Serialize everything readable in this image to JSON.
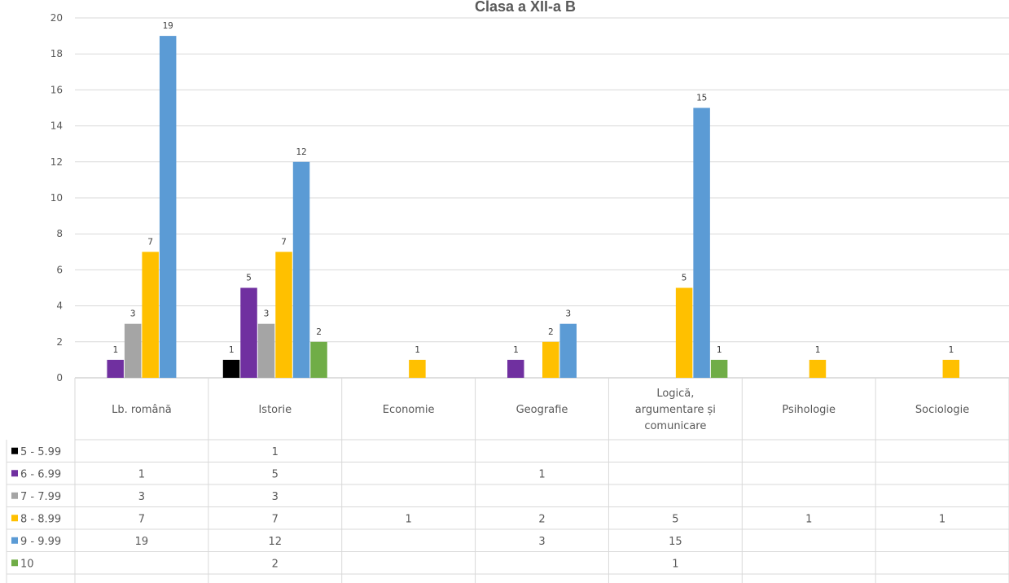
{
  "chart_data": {
    "type": "bar",
    "title": "Clasa a XII-a B",
    "categories": [
      [
        "Lb. română"
      ],
      [
        "Istorie"
      ],
      [
        "Economie"
      ],
      [
        "Geografie"
      ],
      [
        "Logică,",
        "argumentare și",
        "comunicare"
      ],
      [
        "Psihologie"
      ],
      [
        "Sociologie"
      ]
    ],
    "series": [
      {
        "name": "5 - 5.99",
        "color": "#000000",
        "values": [
          null,
          1,
          null,
          null,
          null,
          null,
          null
        ]
      },
      {
        "name": "6 - 6.99",
        "color": "#7030A0",
        "values": [
          1,
          5,
          null,
          1,
          null,
          null,
          null
        ]
      },
      {
        "name": "7 - 7.99",
        "color": "#A5A5A5",
        "values": [
          3,
          3,
          null,
          null,
          null,
          null,
          null
        ]
      },
      {
        "name": "8 - 8.99",
        "color": "#FFC000",
        "values": [
          7,
          7,
          1,
          2,
          5,
          1,
          1
        ]
      },
      {
        "name": "9 - 9.99",
        "color": "#5B9BD5",
        "values": [
          19,
          12,
          null,
          3,
          15,
          null,
          null
        ]
      },
      {
        "name": "10",
        "color": "#70AD47",
        "values": [
          null,
          2,
          null,
          null,
          1,
          null,
          null
        ]
      }
    ],
    "ylim": [
      0,
      20
    ],
    "yticks": [
      0,
      2,
      4,
      6,
      8,
      10,
      12,
      14,
      16,
      18,
      20
    ],
    "grid": true,
    "legend": "data-table"
  }
}
